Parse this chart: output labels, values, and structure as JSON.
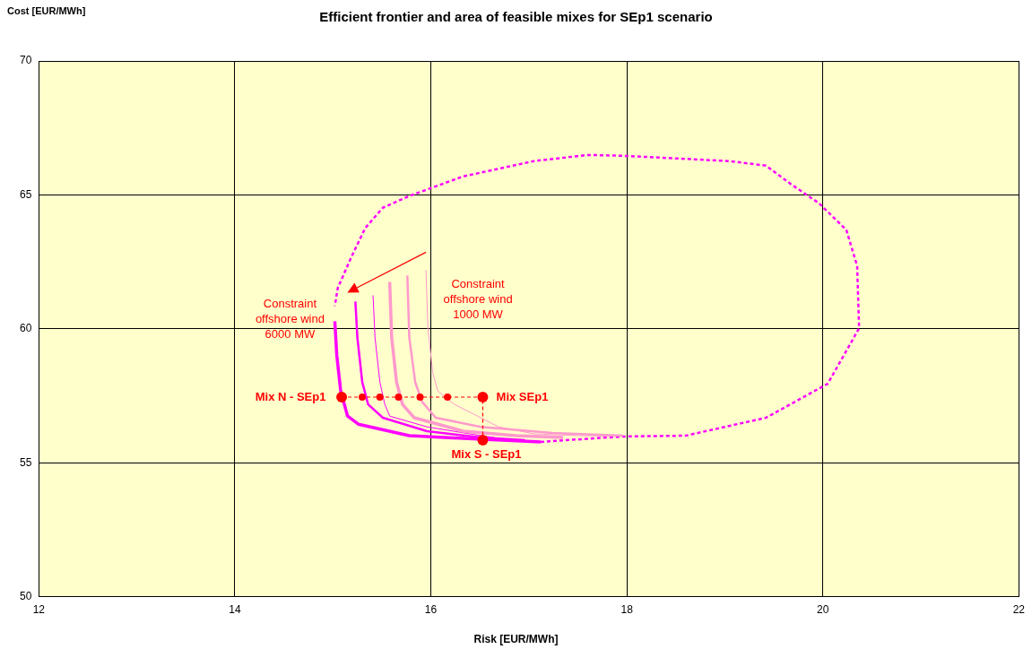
{
  "chart_data": {
    "type": "line",
    "title": "Efficient frontier and area of feasible mixes for SEp1 scenario",
    "xlabel": "Risk  [EUR/MWh]",
    "ylabel": "Cost [EUR/MWh]",
    "xlim": [
      12,
      22
    ],
    "xticks": [
      12,
      14,
      16,
      18,
      20,
      22
    ],
    "ylim": [
      50,
      70
    ],
    "yticks": [
      50,
      55,
      60,
      65,
      70
    ],
    "grid": true,
    "legend": false,
    "marker": "none",
    "line_style": "solid",
    "series": [
      {
        "color": "#ff00ff",
        "line_style": "dashed",
        "x": [
          17.12,
          17.96,
          18.6,
          19.42,
          20.05,
          20.37,
          20.35,
          20.24,
          19.96,
          19.69,
          19.42,
          19.05,
          18.51,
          17.96,
          17.6,
          17.05,
          16.33,
          15.78,
          15.51,
          15.33,
          15.19,
          15.05,
          15.02
        ],
        "values": [
          55.78,
          55.98,
          56.01,
          56.68,
          57.95,
          60.02,
          62.35,
          63.69,
          64.69,
          65.36,
          66.09,
          66.26,
          66.36,
          66.46,
          66.49,
          66.26,
          65.69,
          64.96,
          64.52,
          63.76,
          62.69,
          61.52,
          60.85
        ]
      },
      {
        "color": "#ff00ff",
        "x": [
          15.02,
          15.04,
          15.08,
          15.15,
          15.26,
          15.78,
          16.33,
          17.12
        ],
        "values": [
          60.28,
          59.01,
          57.68,
          56.74,
          56.44,
          56.01,
          55.91,
          55.78
        ]
      },
      {
        "color": "#ff00ff",
        "x": [
          15.23,
          15.25,
          15.3,
          15.36,
          15.51,
          15.96,
          16.51,
          16.96
        ],
        "values": [
          61.02,
          59.68,
          58.01,
          57.18,
          56.68,
          56.18,
          55.94,
          55.84
        ]
      },
      {
        "color": "#ff00ff",
        "x": [
          15.41,
          15.43,
          15.48,
          15.53,
          15.58,
          15.96,
          16.51,
          16.65
        ],
        "values": [
          61.25,
          59.68,
          58.01,
          57.18,
          56.74,
          56.34,
          56.01,
          55.94
        ]
      },
      {
        "color": "#ff99cc",
        "x": [
          15.58,
          15.6,
          15.65,
          15.71,
          15.83,
          16.33,
          16.87,
          17.35
        ],
        "values": [
          61.75,
          59.68,
          58.01,
          57.18,
          56.68,
          56.18,
          56.01,
          55.94
        ]
      },
      {
        "color": "#ff99cc",
        "x": [
          15.76,
          15.78,
          15.84,
          15.91,
          16.05,
          16.51,
          17.24,
          17.96
        ],
        "values": [
          61.99,
          59.68,
          58.01,
          57.28,
          56.68,
          56.34,
          56.11,
          56.01
        ]
      },
      {
        "color": "#ff99cc",
        "x": [
          15.95,
          15.97,
          16.02,
          16.07,
          16.24,
          16.69,
          17.05,
          17.51,
          17.96
        ],
        "values": [
          62.19,
          60.02,
          58.35,
          57.68,
          57.18,
          56.34,
          56.08,
          56.01,
          56.0
        ]
      },
      {
        "color": "#ff0000",
        "line_style": "dashed",
        "marker": "circle",
        "x": [
          15.09,
          15.3,
          15.48,
          15.67,
          15.89,
          16.17,
          16.53,
          16.53
        ],
        "values": [
          57.45,
          57.45,
          57.45,
          57.45,
          57.45,
          57.45,
          57.45,
          55.84
        ]
      }
    ],
    "annotations": [
      "Constraint\noffshore wind\n1000 MW",
      "Constraint\noffshore wind\n6000 MW",
      "Mix N - SEp1",
      "Mix SEp1",
      "Mix S - SEp1"
    ]
  }
}
